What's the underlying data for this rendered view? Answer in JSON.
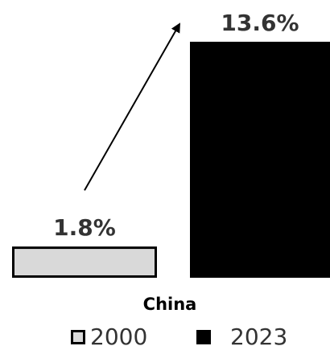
{
  "chart_data": {
    "type": "bar",
    "categories": [
      "China"
    ],
    "series": [
      {
        "name": "2000",
        "values": [
          1.8
        ],
        "label": "1.8%",
        "fill": "#d9d9d9",
        "stroke": "#000000"
      },
      {
        "name": "2023",
        "values": [
          13.6
        ],
        "label": "13.6%",
        "fill": "#000000",
        "stroke": "#000000"
      }
    ],
    "ylim": [
      0,
      13.6
    ],
    "annotations": [
      {
        "type": "arrow",
        "from_series": "2000",
        "to_series": "2023"
      }
    ],
    "legend": {
      "position": "bottom"
    },
    "grid": false
  }
}
